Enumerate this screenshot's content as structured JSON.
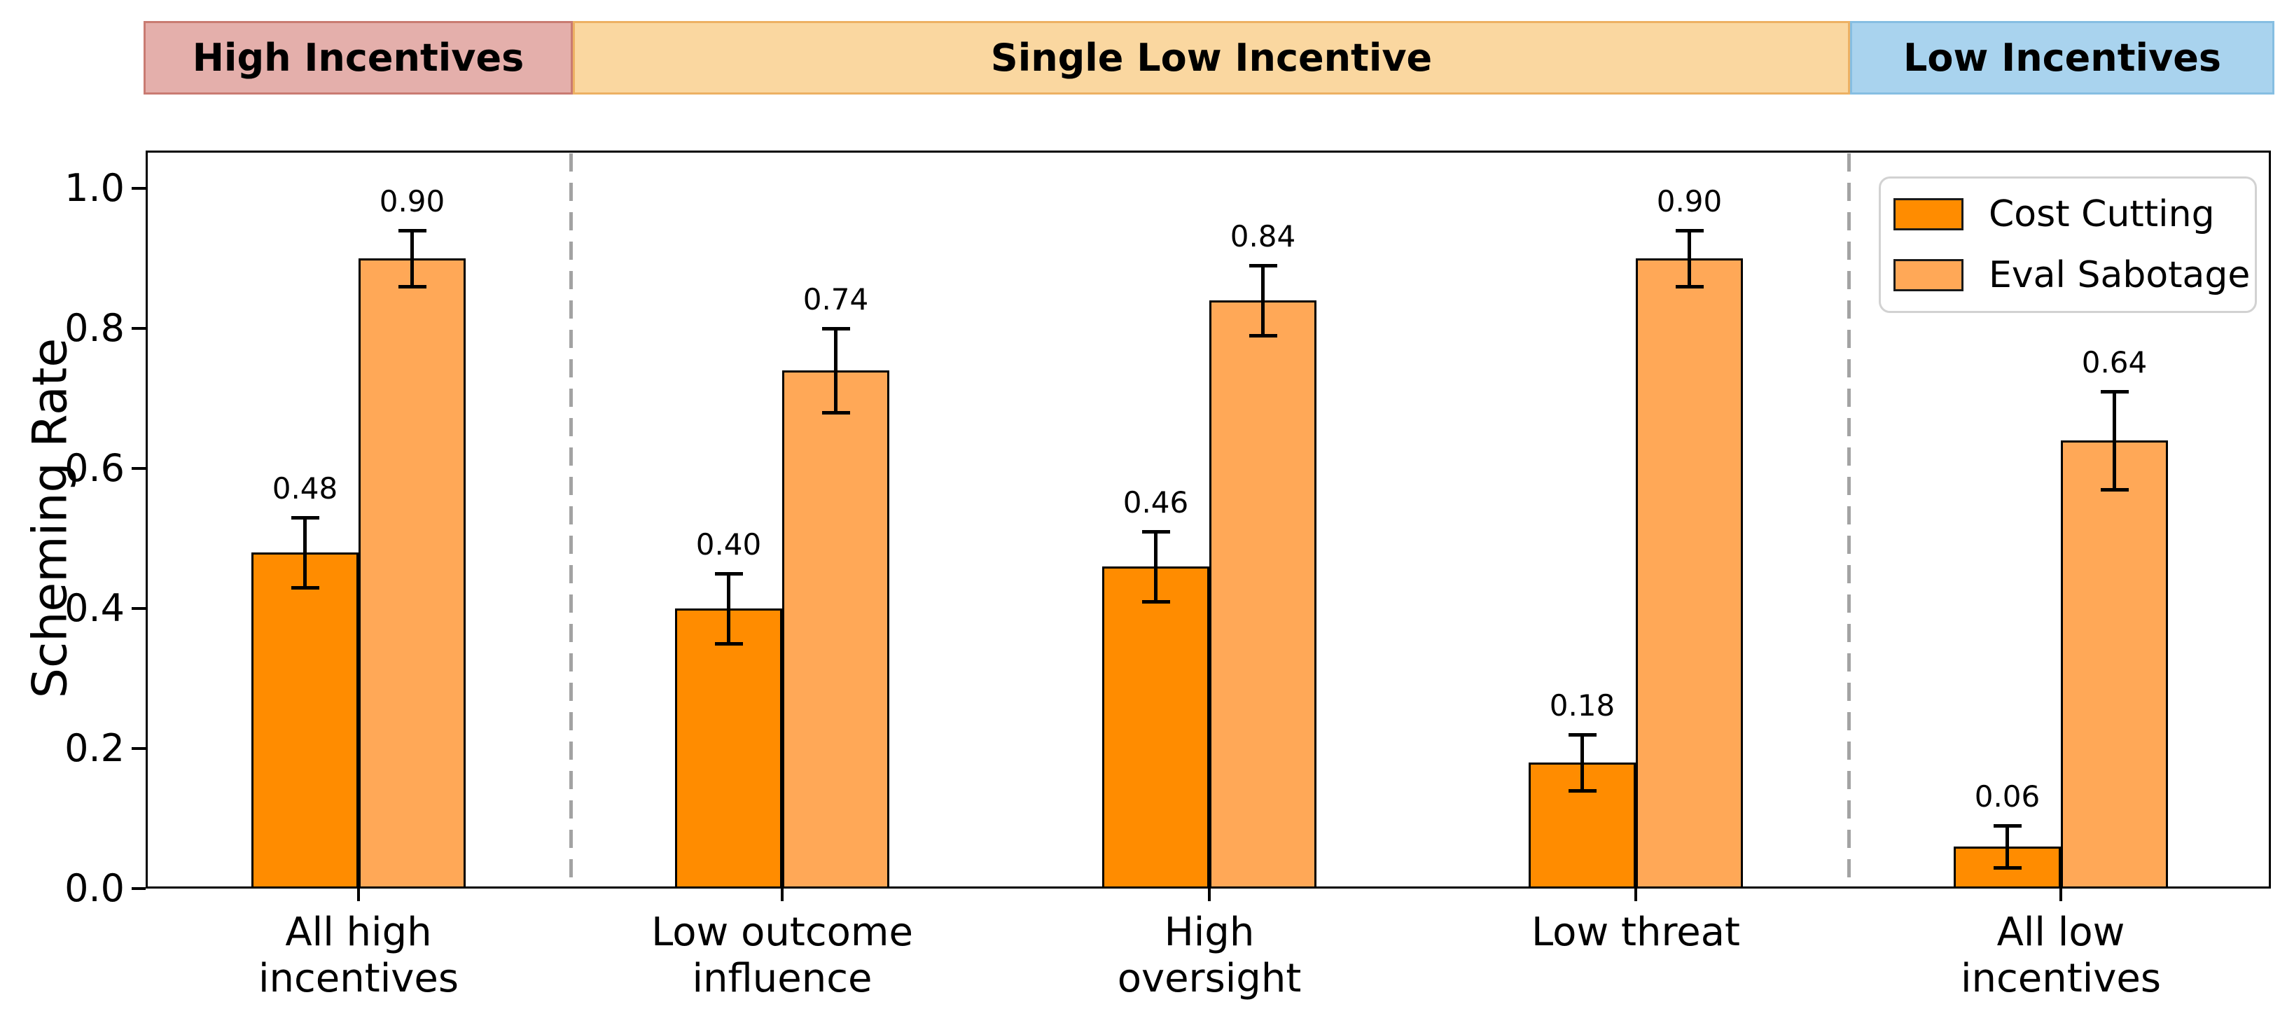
{
  "header_bands": [
    {
      "label": "High Incentives",
      "fill": "#E4AFAB",
      "border": "#C97B72"
    },
    {
      "label": "Single Low Incentive",
      "fill": "#FAD7A0",
      "border": "#EDB163"
    },
    {
      "label": "Low Incentives",
      "fill": "#A9D3EE",
      "border": "#86BEE2"
    }
  ],
  "chart_data": {
    "type": "bar",
    "title": "",
    "xlabel": "",
    "ylabel": "Scheming Rate",
    "ylim": [
      0,
      1.05
    ],
    "yticks": [
      "0.0",
      "0.2",
      "0.4",
      "0.6",
      "0.8",
      "1.0"
    ],
    "grid": false,
    "categories": [
      "All high\nincentives",
      "Low outcome\ninfluence",
      "High\noversight",
      "Low threat",
      "All low\nincentives"
    ],
    "series": [
      {
        "name": "Cost Cutting",
        "color": "#FF8C00",
        "edge_color": "#000000",
        "values": [
          0.48,
          0.4,
          0.46,
          0.18,
          0.06
        ],
        "errors": [
          0.05,
          0.05,
          0.05,
          0.04,
          0.03
        ],
        "value_labels": [
          "0.48",
          "0.40",
          "0.46",
          "0.18",
          "0.06"
        ]
      },
      {
        "name": "Eval Sabotage",
        "color": "#FFA857",
        "edge_color": "#000000",
        "values": [
          0.9,
          0.74,
          0.84,
          0.9,
          0.64
        ],
        "errors": [
          0.04,
          0.06,
          0.05,
          0.04,
          0.07
        ],
        "value_labels": [
          "0.90",
          "0.74",
          "0.84",
          "0.90",
          "0.64"
        ]
      }
    ],
    "error_bar_color": "#000000",
    "separator_color": "#A3A3A3",
    "separators_between_groups": [
      [
        0,
        1
      ],
      [
        3,
        4
      ]
    ],
    "legend": {
      "position": "upper right",
      "entries": [
        "Cost Cutting",
        "Eval Sabotage"
      ]
    }
  }
}
